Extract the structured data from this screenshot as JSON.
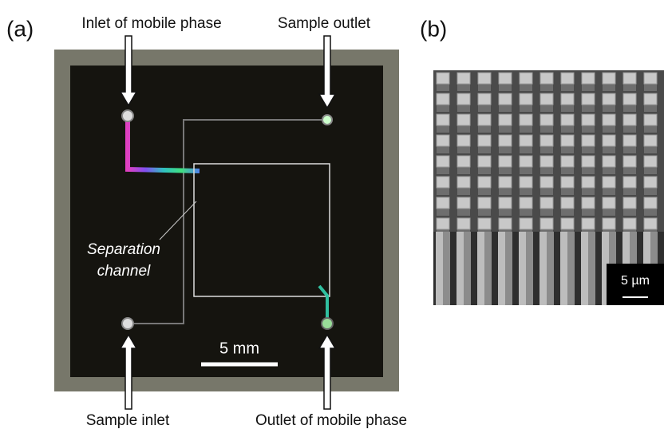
{
  "panel_a": {
    "label": "(a)",
    "inlet_mobile": "Inlet of mobile phase",
    "sample_outlet": "Sample outlet",
    "separation_line1": "Separation",
    "separation_line2": "channel",
    "scale": "5 mm",
    "sample_inlet": "Sample inlet",
    "outlet_mobile": "Outlet of mobile phase"
  },
  "panel_b": {
    "label": "(b)",
    "scale": "5 µm"
  }
}
